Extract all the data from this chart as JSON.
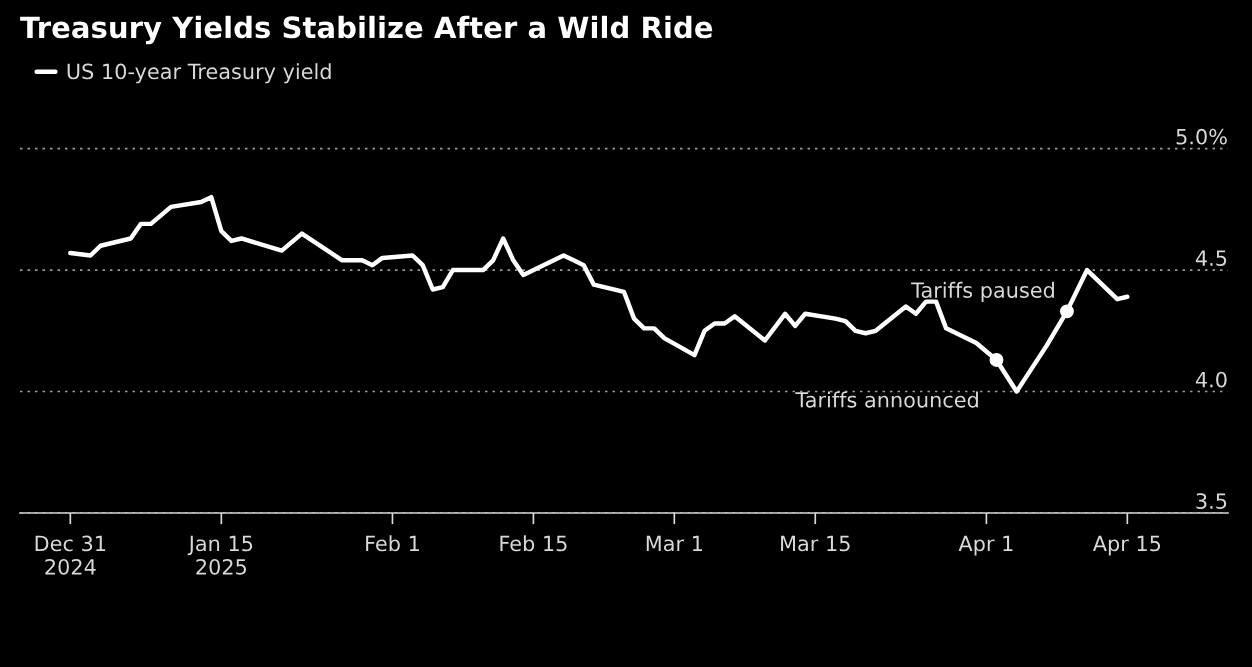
{
  "chart_data": {
    "type": "line",
    "title": "Treasury Yields Stabilize After a Wild Ride",
    "x": [
      "2024-12-31",
      "2025-01-02",
      "2025-01-03",
      "2025-01-06",
      "2025-01-07",
      "2025-01-08",
      "2025-01-10",
      "2025-01-13",
      "2025-01-14",
      "2025-01-15",
      "2025-01-16",
      "2025-01-17",
      "2025-01-21",
      "2025-01-23",
      "2025-01-27",
      "2025-01-29",
      "2025-01-30",
      "2025-01-31",
      "2025-02-03",
      "2025-02-04",
      "2025-02-05",
      "2025-02-06",
      "2025-02-07",
      "2025-02-10",
      "2025-02-11",
      "2025-02-12",
      "2025-02-13",
      "2025-02-14",
      "2025-02-18",
      "2025-02-19",
      "2025-02-20",
      "2025-02-21",
      "2025-02-24",
      "2025-02-25",
      "2025-02-26",
      "2025-02-27",
      "2025-02-28",
      "2025-03-03",
      "2025-03-04",
      "2025-03-05",
      "2025-03-06",
      "2025-03-07",
      "2025-03-10",
      "2025-03-12",
      "2025-03-13",
      "2025-03-14",
      "2025-03-17",
      "2025-03-18",
      "2025-03-19",
      "2025-03-20",
      "2025-03-21",
      "2025-03-24",
      "2025-03-25",
      "2025-03-26",
      "2025-03-27",
      "2025-03-28",
      "2025-03-31",
      "2025-04-02",
      "2025-04-04",
      "2025-04-07",
      "2025-04-09",
      "2025-04-11",
      "2025-04-14",
      "2025-04-15"
    ],
    "series": [
      {
        "name": "US 10-year Treasury yield",
        "color": "#ffffff",
        "values": [
          4.57,
          4.56,
          4.6,
          4.63,
          4.69,
          4.69,
          4.76,
          4.78,
          4.8,
          4.66,
          4.62,
          4.63,
          4.58,
          4.65,
          4.54,
          4.54,
          4.52,
          4.55,
          4.56,
          4.52,
          4.42,
          4.43,
          4.5,
          4.5,
          4.54,
          4.63,
          4.54,
          4.48,
          4.56,
          4.54,
          4.52,
          4.44,
          4.41,
          4.3,
          4.26,
          4.26,
          4.22,
          4.15,
          4.25,
          4.28,
          4.28,
          4.31,
          4.21,
          4.32,
          4.27,
          4.32,
          4.3,
          4.29,
          4.25,
          4.24,
          4.25,
          4.35,
          4.32,
          4.37,
          4.37,
          4.26,
          4.2,
          4.13,
          4.0,
          4.19,
          4.33,
          4.5,
          4.38,
          4.39
        ]
      }
    ],
    "xlim": [
      "2024-12-26",
      "2025-04-25"
    ],
    "xticks": [
      {
        "value": "2024-12-31",
        "label": "Dec 31\n2024"
      },
      {
        "value": "2025-01-15",
        "label": "Jan 15\n2025"
      },
      {
        "value": "2025-02-01",
        "label": "Feb 1"
      },
      {
        "value": "2025-02-15",
        "label": "Feb 15"
      },
      {
        "value": "2025-03-01",
        "label": "Mar 1"
      },
      {
        "value": "2025-03-15",
        "label": "Mar 15"
      },
      {
        "value": "2025-04-01",
        "label": "Apr 1"
      },
      {
        "value": "2025-04-15",
        "label": "Apr 15"
      }
    ],
    "ylim": [
      3.5,
      5.2
    ],
    "yticks": [
      {
        "value": 3.5,
        "label": "3.5"
      },
      {
        "value": 4.0,
        "label": "4.0"
      },
      {
        "value": 4.5,
        "label": "4.5"
      },
      {
        "value": 5.0,
        "label": "5.0%"
      }
    ],
    "grid": "y",
    "legend": "top left",
    "annotations": [
      {
        "text": "Tariffs announced",
        "x": "2025-04-02",
        "y": 4.13
      },
      {
        "text": "Tariffs paused",
        "x": "2025-04-09",
        "y": 4.33
      }
    ]
  }
}
